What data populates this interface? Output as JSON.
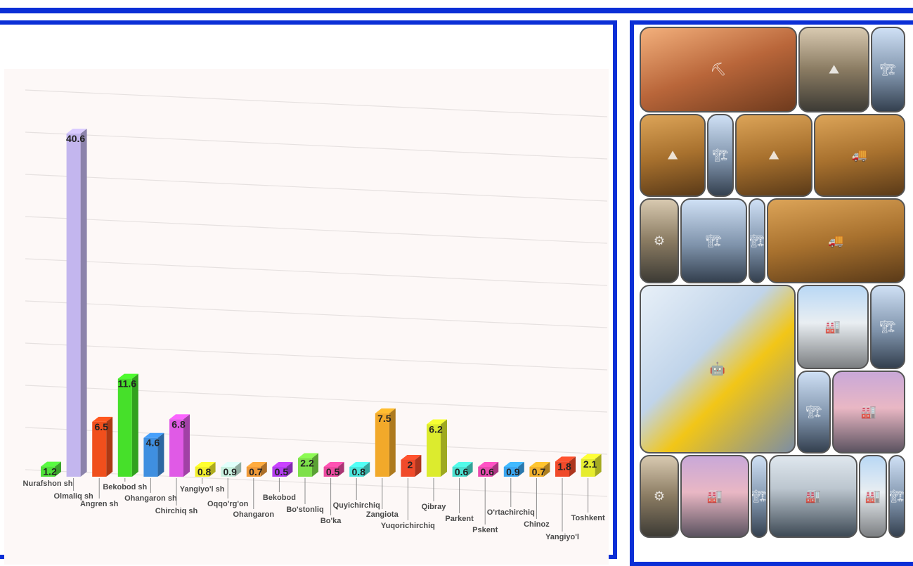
{
  "colors": {
    "frame": "#0b2fd6",
    "chart_bg": "#fdf8f7"
  },
  "chart_data": {
    "type": "bar",
    "title": "",
    "xlabel": "",
    "ylabel": "",
    "style": "3d-columns",
    "grid": true,
    "ylim": [
      0,
      45
    ],
    "categories": [
      "Nurafshon sh",
      "Olmaliq sh",
      "Angren sh",
      "Bekobod sh",
      "Ohangaron sh",
      "Chirchiq sh",
      "Yangiyo'l sh",
      "Oqqo'rg'on",
      "Ohangaron",
      "Bekobod",
      "Bo'stonliq",
      "Bo'ka",
      "Quyichirchiq",
      "Zangiota",
      "Yuqorichirchiq",
      "Qibray",
      "Parkent",
      "Pskent",
      "O'rtachirchiq",
      "Chinoz",
      "Yangiyo'l",
      "Toshkent"
    ],
    "values": [
      1.2,
      40.6,
      6.5,
      11.6,
      4.6,
      6.8,
      0.8,
      0.9,
      0.7,
      0.5,
      2.2,
      0.5,
      0.8,
      7.5,
      2,
      6.2,
      0.6,
      0.6,
      0.9,
      0.7,
      1.8,
      2.1
    ],
    "data_labels": [
      "1.2",
      "40.6",
      "6.5",
      "11.6",
      "4.6",
      "6.8",
      "0.8",
      "0.9",
      "0.7",
      "0.5",
      "2.2",
      "0.5",
      "0.8",
      "7.5",
      "2",
      "6.2",
      "0.6",
      "0.6",
      "0.9",
      "0.7",
      "1.8",
      "2.1"
    ],
    "bar_colors": [
      "#4fe03a",
      "#c3b6ee",
      "#f04f1c",
      "#46e02a",
      "#3f8fe0",
      "#e05ae6",
      "#f2ee2a",
      "#c9f0e0",
      "#f09a38",
      "#b43cf0",
      "#7ee04a",
      "#ec4aa0",
      "#4ae6dc",
      "#f2a92a",
      "#f04a2a",
      "#dceb2e",
      "#4ae0d0",
      "#ea4ab0",
      "#3aa6f0",
      "#f2b02a",
      "#f04a2a",
      "#e6ec2e"
    ]
  },
  "gallery": {
    "photos": [
      {
        "name": "mining-truck-photo",
        "theme": "desert"
      },
      {
        "name": "open-pit-mine-photo",
        "theme": "pit"
      },
      {
        "name": "excavator-crane-photo",
        "theme": "crane"
      },
      {
        "name": "quarry-terraces-photo",
        "theme": "truckpit"
      },
      {
        "name": "drilling-rig-photo",
        "theme": "crane"
      },
      {
        "name": "quarry-terraces-photo",
        "theme": "truckpit"
      },
      {
        "name": "haul-trucks-photo",
        "theme": "truckpit"
      },
      {
        "name": "conveyor-photo",
        "theme": "pit"
      },
      {
        "name": "bucket-wheel-excavator-photo",
        "theme": "crane"
      },
      {
        "name": "excavator-crane-photo",
        "theme": "crane"
      },
      {
        "name": "haul-trucks-pit-photo",
        "theme": "truckpit"
      },
      {
        "name": "robotic-assembly-line-photo",
        "theme": "robot"
      },
      {
        "name": "refinery-photo",
        "theme": "plant"
      },
      {
        "name": "excavator-crane-photo",
        "theme": "crane"
      },
      {
        "name": "excavator-crane-photo",
        "theme": "crane"
      },
      {
        "name": "refinery-dusk-photo",
        "theme": "dusk"
      },
      {
        "name": "conveyor-photo",
        "theme": "pit"
      },
      {
        "name": "refinery-dusk-photo",
        "theme": "dusk"
      },
      {
        "name": "excavator-crane-photo",
        "theme": "crane"
      },
      {
        "name": "steaming-plant-photo",
        "theme": "steam"
      },
      {
        "name": "refinery-towers-photo",
        "theme": "plant"
      },
      {
        "name": "excavator-crane-photo",
        "theme": "crane"
      }
    ]
  }
}
